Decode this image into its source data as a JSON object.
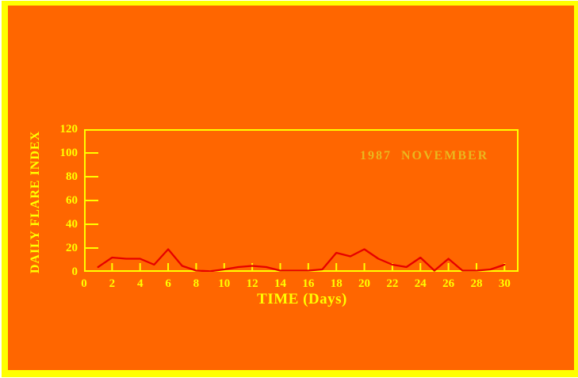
{
  "window": {
    "background_color": "#ff6600",
    "frame_color": "#ffff00"
  },
  "chart_data": {
    "type": "line",
    "annotation": "1987  NOVEMBER",
    "annotation_color": "#eab71e",
    "xlabel": "TIME (Days)",
    "ylabel": "DAILY FLARE INDEX",
    "x": [
      1,
      2,
      3,
      4,
      5,
      6,
      7,
      8,
      9,
      10,
      11,
      12,
      13,
      14,
      15,
      16,
      17,
      18,
      19,
      20,
      21,
      22,
      23,
      24,
      25,
      26,
      27,
      28,
      29,
      30
    ],
    "values": [
      4,
      12,
      11,
      11,
      6,
      19,
      5,
      1,
      0.5,
      2,
      4,
      5,
      4,
      1,
      1,
      1,
      2,
      16,
      13,
      19,
      11,
      6,
      4,
      12,
      1,
      11,
      1,
      1,
      2,
      6
    ],
    "xlim": [
      0,
      31
    ],
    "ylim": [
      0,
      120
    ],
    "xticks": [
      0,
      2,
      4,
      6,
      8,
      10,
      12,
      14,
      16,
      18,
      20,
      22,
      24,
      26,
      28,
      30
    ],
    "yticks": [
      0,
      20,
      40,
      60,
      80,
      100,
      120
    ],
    "line_color": "#e60000",
    "axis_color": "#ffff00",
    "grid": false,
    "legend_position": "none"
  }
}
